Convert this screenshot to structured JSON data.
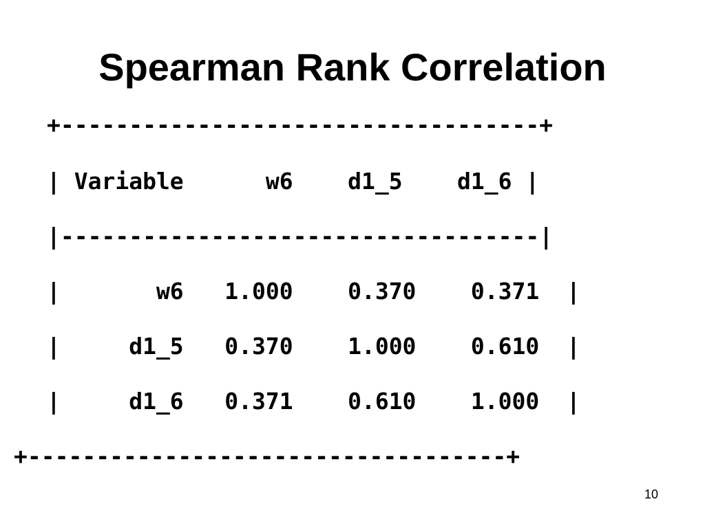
{
  "slide": {
    "title": "Spearman Rank Correlation",
    "page_number": "10"
  },
  "table": {
    "top_border": "+-----------------------------------+",
    "header_row": "| Variable      w6    d1_5    d1_6 |",
    "separator": "|-----------------------------------|",
    "rows": [
      "|       w6   1.000    0.370    0.371  |",
      "|     d1_5   0.370    1.000    0.610  |",
      "|     d1_6   0.371    0.610    1.000  |"
    ],
    "bottom_border": "+-----------------------------------+"
  }
}
